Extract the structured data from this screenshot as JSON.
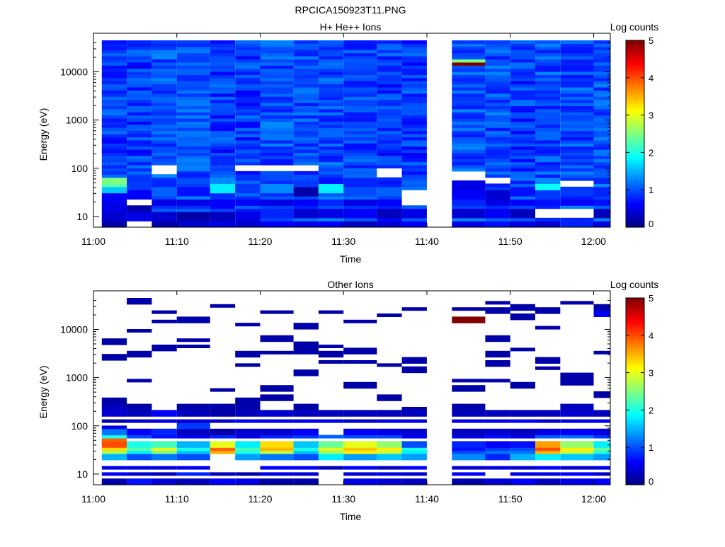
{
  "figure": {
    "title": "RPCICA150923T11.PNG"
  },
  "chart_data": [
    {
      "type": "heatmap",
      "title": "H+ He++ Ions",
      "xlabel": "Time",
      "ylabel": "Energy (eV)",
      "x_ticks": [
        "11:00",
        "11:10",
        "11:20",
        "11:30",
        "11:40",
        "11:50",
        "12:00"
      ],
      "x_range": [
        "11:00",
        "12:02"
      ],
      "y_scale": "log",
      "y_ticks": [
        "10",
        "100",
        "1000",
        "10000"
      ],
      "y_range": [
        6,
        45000
      ],
      "colorbar": {
        "label": "Log counts",
        "range": [
          0,
          5
        ],
        "ticks": [
          "0",
          "1",
          "2",
          "3",
          "4",
          "5"
        ],
        "colormap": "jet"
      },
      "data_gap": [
        "11:40",
        "11:43"
      ],
      "time_bins": [
        "11:01-11:04",
        "11:04-11:07",
        "11:07-11:10",
        "11:10-11:14",
        "11:14-11:17",
        "11:17-11:20",
        "11:20-11:24",
        "11:24-11:27",
        "11:27-11:30",
        "11:30-11:34",
        "11:34-11:37",
        "11:37-11:40",
        "11:43-11:47",
        "11:47-11:50",
        "11:50-11:53",
        "11:53-11:56",
        "11:56-11:60",
        "12:00-12:02"
      ],
      "columns": [
        {
          "t": "11:01",
          "background": 0.9,
          "low_energy": {
            "7": 0.2,
            "10": 0.4,
            "15": 0.5,
            "25": 0.6,
            "33": 1.6,
            "45": 2.3,
            "55": 2.5
          }
        },
        {
          "t": "11:04",
          "background": 0.9,
          "low_energy": {
            "7": null,
            "10": 0.5,
            "15": 0.2,
            "20": null,
            "30": 0.6,
            "40": 0.9
          }
        },
        {
          "t": "11:07",
          "background": 1.0,
          "low_energy": {
            "7": 0.2,
            "10": 0.4,
            "20": 0.5,
            "33": 1.1,
            "45": 0.8,
            "90": null
          }
        },
        {
          "t": "11:10",
          "background": 1.0,
          "low_energy": {
            "7": 0.4,
            "10": 0.2,
            "20": 0.5,
            "33": 0.7,
            "55": 1.0
          }
        },
        {
          "t": "11:14",
          "background": 0.9,
          "low_energy": {
            "7": 0.5,
            "10": 0.3,
            "20": 0.6,
            "40": 1.8,
            "50": 1.3
          }
        },
        {
          "t": "11:17",
          "background": 0.9,
          "low_energy": {
            "7": 0.4,
            "10": 0.5,
            "20": 0.6,
            "40": 0.9,
            "100": null
          }
        },
        {
          "t": "11:20",
          "background": 1.0,
          "low_energy": {
            "7": 0.6,
            "12": 0.8,
            "20": 0.5,
            "40": 1.3,
            "100": null
          }
        },
        {
          "t": "11:24",
          "background": 1.0,
          "low_energy": {
            "7": 0.5,
            "12": 0.4,
            "20": 0.6,
            "35": 0.2,
            "45": 0.9,
            "100": null
          }
        },
        {
          "t": "11:27",
          "background": 1.0,
          "low_energy": {
            "7": 0.6,
            "12": 0.5,
            "20": 0.8,
            "40": 1.8,
            "55": 0.7
          }
        },
        {
          "t": "11:30",
          "background": 0.9,
          "low_energy": {
            "7": 0.3,
            "12": 0.6,
            "20": 0.5,
            "35": 1.0,
            "50": 0.8
          }
        },
        {
          "t": "11:34",
          "background": 0.9,
          "low_energy": {
            "7": 0.4,
            "12": 0.3,
            "20": 0.6,
            "35": 1.1,
            "80": null
          }
        },
        {
          "t": "11:37",
          "background": 0.9,
          "low_energy": {
            "7": 0.6,
            "12": 0.5,
            "20": null,
            "30": null
          }
        },
        {
          "t": "11:43",
          "background": 1.0,
          "low_energy": {
            "7": 0.5,
            "12": 0.4,
            "20": 0.8,
            "30": 0.6,
            "45": 0.5,
            "70": null
          },
          "notable": {
            "16000": 5.0,
            "18000": 2.5
          }
        },
        {
          "t": "11:47",
          "background": 1.0,
          "low_energy": {
            "7": 0.7,
            "12": 0.6,
            "20": 0.5,
            "30": 0.4,
            "55": null
          }
        },
        {
          "t": "11:50",
          "background": 0.9,
          "low_energy": {
            "7": 0.5,
            "12": 0.3,
            "20": 0.6,
            "35": 0.7
          }
        },
        {
          "t": "11:53",
          "background": 1.0,
          "low_energy": {
            "7": 0.4,
            "12": null,
            "20": 0.7,
            "30": 0.9,
            "40": 1.9,
            "50": 1.3
          }
        },
        {
          "t": "11:56",
          "background": 1.0,
          "low_energy": {
            "7": 0.8,
            "12": null,
            "20": 0.6,
            "35": 0.9,
            "45": null
          }
        },
        {
          "t": "12:00",
          "background": 1.0,
          "low_energy": {
            "7": 0.5,
            "12": 0.3,
            "20": 0.7,
            "35": 0.8
          }
        }
      ]
    },
    {
      "type": "heatmap",
      "title": "Other Ions",
      "xlabel": "Time",
      "ylabel": "Energy (eV)",
      "x_ticks": [
        "11:00",
        "11:10",
        "11:20",
        "11:30",
        "11:40",
        "11:50",
        "12:00"
      ],
      "x_range": [
        "11:00",
        "12:02"
      ],
      "y_scale": "log",
      "y_ticks": [
        "10",
        "100",
        "1000",
        "10000"
      ],
      "y_range": [
        6,
        45000
      ],
      "colorbar": {
        "label": "Log counts",
        "range": [
          0,
          5
        ],
        "ticks": [
          "0",
          "1",
          "2",
          "3",
          "4",
          "5"
        ],
        "colormap": "jet"
      },
      "data_gap": [
        "11:40",
        "11:43"
      ],
      "columns": [
        {
          "t": "11:01",
          "bins": {
            "7": 0.2,
            "10": 0.6,
            "14": 0.5,
            "22": 1.5,
            "28": 2.7,
            "35": 3.3,
            "42": 4.0,
            "50": 3.9,
            "60": 2.0,
            "75": 1.2,
            "95": 0.5,
            "130": 0.2,
            "180": 0.4,
            "240": 0.3,
            "330": 0.2,
            "2600": 0.2,
            "5500": 0.2
          }
        },
        {
          "t": "11:04",
          "bins": {
            "7": 0.7,
            "10": 0.4,
            "14": 0.5,
            "22": 1.0,
            "28": 1.8,
            "35": 2.3,
            "42": 2.0,
            "60": 1.0,
            "75": 0.6,
            "130": 0.4,
            "180": 0.3,
            "240": 0.2,
            "850": 0.2,
            "3100": 0.2,
            "9500": 0.2,
            "40000": 0.2
          }
        },
        {
          "t": "11:07",
          "bins": {
            "7": 0.4,
            "10": 0.3,
            "14": 0.5,
            "22": 1.2,
            "28": 2.5,
            "35": 3.0,
            "42": 2.2,
            "60": 0.7,
            "75": 0.8,
            "130": 0.5,
            "180": 0.6,
            "4300": 0.2,
            "15000": 0.2,
            "23000": 0.2
          }
        },
        {
          "t": "11:10",
          "bins": {
            "7": 0.3,
            "10": 0.8,
            "14": 0.5,
            "22": 1.0,
            "28": 1.6,
            "35": 2.0,
            "42": 1.5,
            "60": 0.6,
            "75": 0.3,
            "100": 0.9,
            "130": 0.4,
            "180": 0.3,
            "240": 0.2,
            "4500": 0.2,
            "6000": 0.2,
            "16500": 0.2
          }
        },
        {
          "t": "11:14",
          "bins": {
            "7": 0.6,
            "10": 0.3,
            "14": null,
            "22": null,
            "28": 3.5,
            "35": 3.9,
            "42": 3.0,
            "60": 0.8,
            "75": 0.2,
            "130": 0.4,
            "180": 0.2,
            "240": 0.2,
            "550": 0.2,
            "31000": 0.2
          }
        },
        {
          "t": "11:17",
          "bins": {
            "7": 0.5,
            "10": 0.2,
            "14": null,
            "22": 1.4,
            "28": 2.0,
            "35": 2.2,
            "42": 1.8,
            "60": 0.5,
            "75": 0.4,
            "130": 0.6,
            "180": 0.3,
            "240": 0.2,
            "330": 0.2,
            "1900": 0.2,
            "3200": 0.2,
            "13000": 0.2
          }
        },
        {
          "t": "11:20",
          "bins": {
            "7": 0.2,
            "10": 0.5,
            "14": 0.6,
            "22": 1.2,
            "28": 2.8,
            "35": 3.5,
            "42": 3.3,
            "60": 0.8,
            "75": 0.4,
            "130": 0.5,
            "180": 0.4,
            "400": 0.2,
            "600": 0.2,
            "3400": 0.2,
            "6300": 0.2,
            "23000": 0.2
          }
        },
        {
          "t": "11:24",
          "bins": {
            "7": 0.2,
            "10": 0.4,
            "14": 0.6,
            "22": 1.0,
            "28": 1.6,
            "35": 2.0,
            "42": 1.6,
            "60": 0.9,
            "75": 0.6,
            "130": 0.5,
            "180": 0.3,
            "240": 0.2,
            "1300": 0.2,
            "3600": 0.2,
            "4700": 0.2,
            "12000": 0.2
          }
        },
        {
          "t": "11:27",
          "bins": {
            "7": null,
            "10": null,
            "14": 0.3,
            "22": 1.8,
            "28": 2.6,
            "35": 3.0,
            "42": 2.4,
            "60": 1.1,
            "75": null,
            "130": 0.5,
            "180": 0.3,
            "2200": 0.2,
            "3000": 0.2,
            "4400": 0.2,
            "23000": 0.2
          }
        },
        {
          "t": "11:30",
          "bins": {
            "7": 0.5,
            "10": 0.4,
            "14": 0.6,
            "22": 1.4,
            "28": 3.2,
            "35": 3.4,
            "42": 3.0,
            "60": 1.0,
            "75": 0.6,
            "130": 0.4,
            "180": 0.3,
            "700": 0.2,
            "2100": 0.2,
            "3700": 0.2,
            "15000": 0.2
          }
        },
        {
          "t": "11:34",
          "bins": {
            "7": 0.4,
            "10": 0.5,
            "14": 0.3,
            "22": 1.6,
            "28": 2.8,
            "35": 3.2,
            "42": 2.6,
            "60": 1.0,
            "75": 0.5,
            "130": 0.5,
            "180": 0.3,
            "400": 0.2,
            "1800": 0.2,
            "20000": 0.2
          }
        },
        {
          "t": "11:37",
          "bins": {
            "7": 0.3,
            "10": 0.4,
            "14": 0.6,
            "22": 1.4,
            "28": 1.8,
            "35": 2.0,
            "42": 1.0,
            "60": 0.6,
            "75": 0.4,
            "130": 0.5,
            "180": 0.3,
            "230": 0.2,
            "1500": 0.2,
            "2300": 0.2,
            "26000": 0.2
          }
        },
        {
          "t": "11:43",
          "bins": {
            "7": 0.2,
            "10": 0.6,
            "14": 0.4,
            "22": 1.3,
            "28": 1.0,
            "35": 0.7,
            "42": 0.8,
            "60": 0.5,
            "75": 0.3,
            "130": 0.5,
            "180": 0.3,
            "240": 0.2,
            "600": 0.2,
            "900": 0.2,
            "16000": 5.0,
            "26000": 0.2
          }
        },
        {
          "t": "11:47",
          "bins": {
            "7": 0.4,
            "10": null,
            "14": 0.5,
            "22": 0.8,
            "28": 1.2,
            "35": 0.9,
            "42": 0.6,
            "60": 0.7,
            "75": 0.4,
            "130": 0.5,
            "180": 0.3,
            "900": 0.2,
            "2000": 0.2,
            "2800": 0.2,
            "3300": 0.2,
            "6400": 0.2,
            "24000": 0.2,
            "36000": 0.2
          }
        },
        {
          "t": "11:50",
          "bins": {
            "7": 0.6,
            "10": 0.5,
            "14": 0.4,
            "22": 1.5,
            "28": 1.2,
            "35": 1.0,
            "42": 0.7,
            "60": 0.5,
            "75": 0.3,
            "130": 0.6,
            "180": 0.3,
            "700": 0.2,
            "4000": 0.2,
            "19000": 0.2,
            "29000": 0.2
          }
        },
        {
          "t": "11:53",
          "bins": {
            "7": 0.3,
            "10": 0.5,
            "14": 0.6,
            "22": 1.8,
            "28": 3.5,
            "35": 4.0,
            "42": 3.6,
            "60": 1.1,
            "75": 0.5,
            "130": 0.4,
            "180": 0.3,
            "1600": 0.2,
            "2300": 0.2,
            "11000": 0.2,
            "24000": 0.2
          }
        },
        {
          "t": "11:56",
          "bins": {
            "7": 0.5,
            "10": 0.6,
            "14": 0.4,
            "22": 1.6,
            "28": 2.8,
            "35": 3.2,
            "42": 2.6,
            "60": 1.2,
            "75": 0.6,
            "130": 0.5,
            "180": 0.4,
            "240": 0.3,
            "800": 0.2,
            "1100": 0.2,
            "35000": 0.2
          }
        },
        {
          "t": "12:00",
          "bins": {
            "7": 0.6,
            "10": 0.4,
            "14": 0.5,
            "22": 1.4,
            "28": 2.0,
            "35": 2.4,
            "42": 1.8,
            "60": 0.9,
            "75": 0.5,
            "130": 0.5,
            "180": 0.3,
            "450": 0.2,
            "3300": 0.2,
            "22000": 0.6,
            "30000": 0.2
          }
        }
      ]
    }
  ]
}
